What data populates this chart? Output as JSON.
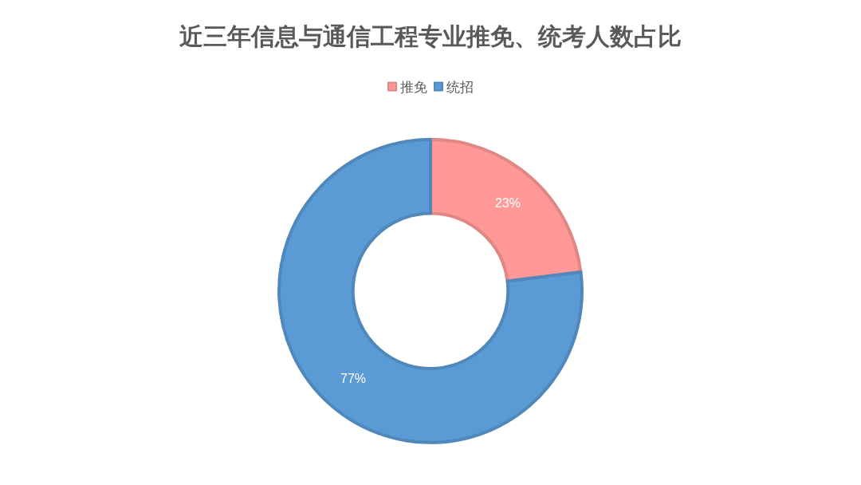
{
  "chart_data": {
    "type": "donut",
    "title": "近三年信息与通信工程专业推免、统考人数占比",
    "categories": [
      "推免",
      "统招"
    ],
    "values": [
      23,
      77
    ],
    "colors": [
      "#ff9896",
      "#5b9bd5"
    ],
    "value_labels": [
      "23%",
      "77%"
    ],
    "legend": "top"
  }
}
